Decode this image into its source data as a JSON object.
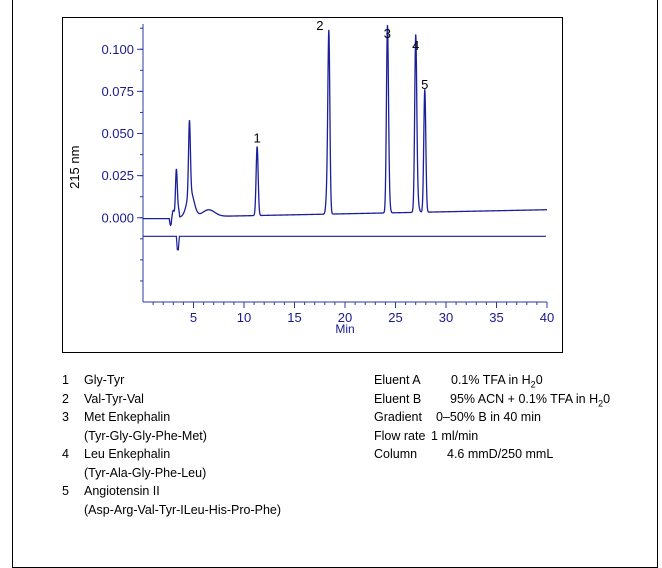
{
  "chart_data": {
    "type": "line",
    "xlabel": "Min",
    "ylabel": "215 nm",
    "xlim": [
      0,
      40
    ],
    "ylim": [
      -0.05,
      0.115
    ],
    "x_ticks": [
      "5",
      "10",
      "15",
      "20",
      "25",
      "30",
      "35",
      "40"
    ],
    "y_ticks": [
      "0.000",
      "0.025",
      "0.050",
      "0.075",
      "0.100"
    ],
    "peak_labels": [
      "1",
      "2",
      "3",
      "4",
      "5"
    ],
    "peaks": [
      {
        "label": "1",
        "x": 11.3,
        "height": 0.041
      },
      {
        "label": "2",
        "x": 18.4,
        "height": 0.108
      },
      {
        "label": "3",
        "x": 24.2,
        "height": 0.103
      },
      {
        "label": "4",
        "x": 27.0,
        "height": 0.096
      },
      {
        "label": "5",
        "x": 27.9,
        "height": 0.073
      }
    ],
    "minor_peaks": [
      {
        "x": 3.3,
        "height": 0.032
      },
      {
        "x": 4.6,
        "height": 0.043
      }
    ],
    "baseline_trace_level": -0.011,
    "colors": {
      "axis": "#2b3aa0",
      "trace": "#1a1f9a",
      "tick_text": "#1a1a8c"
    }
  },
  "legend": {
    "peaks": [
      {
        "num": "1",
        "name": "Gly-Tyr",
        "detail": ""
      },
      {
        "num": "2",
        "name": "Val-Tyr-Val",
        "detail": ""
      },
      {
        "num": "3",
        "name": "Met Enkephalin",
        "detail": "(Tyr-Gly-Gly-Phe-Met)"
      },
      {
        "num": "4",
        "name": "Leu Enkephalin",
        "detail": "(Tyr-Ala-Gly-Phe-Leu)"
      },
      {
        "num": "5",
        "name": "Angiotensin II",
        "detail": "(Asp-Arg-Val-Tyr-ILeu-His-Pro-Phe)"
      }
    ]
  },
  "conditions": {
    "eluent_a_label": "Eluent A",
    "eluent_a_value": "0.1% TFA in H",
    "eluent_a_sub": "2",
    "eluent_a_tail": "0",
    "eluent_b_label": "Eluent B",
    "eluent_b_value": "95% ACN + 0.1% TFA in H",
    "eluent_b_sub": "2",
    "eluent_b_tail": "0",
    "gradient_label": "Gradient",
    "gradient_value": "0–50% B in 40 min",
    "flow_label": "Flow rate",
    "flow_value": "1 ml/min",
    "column_label": "Column",
    "column_value": "4.6 mmD/250 mmL"
  }
}
